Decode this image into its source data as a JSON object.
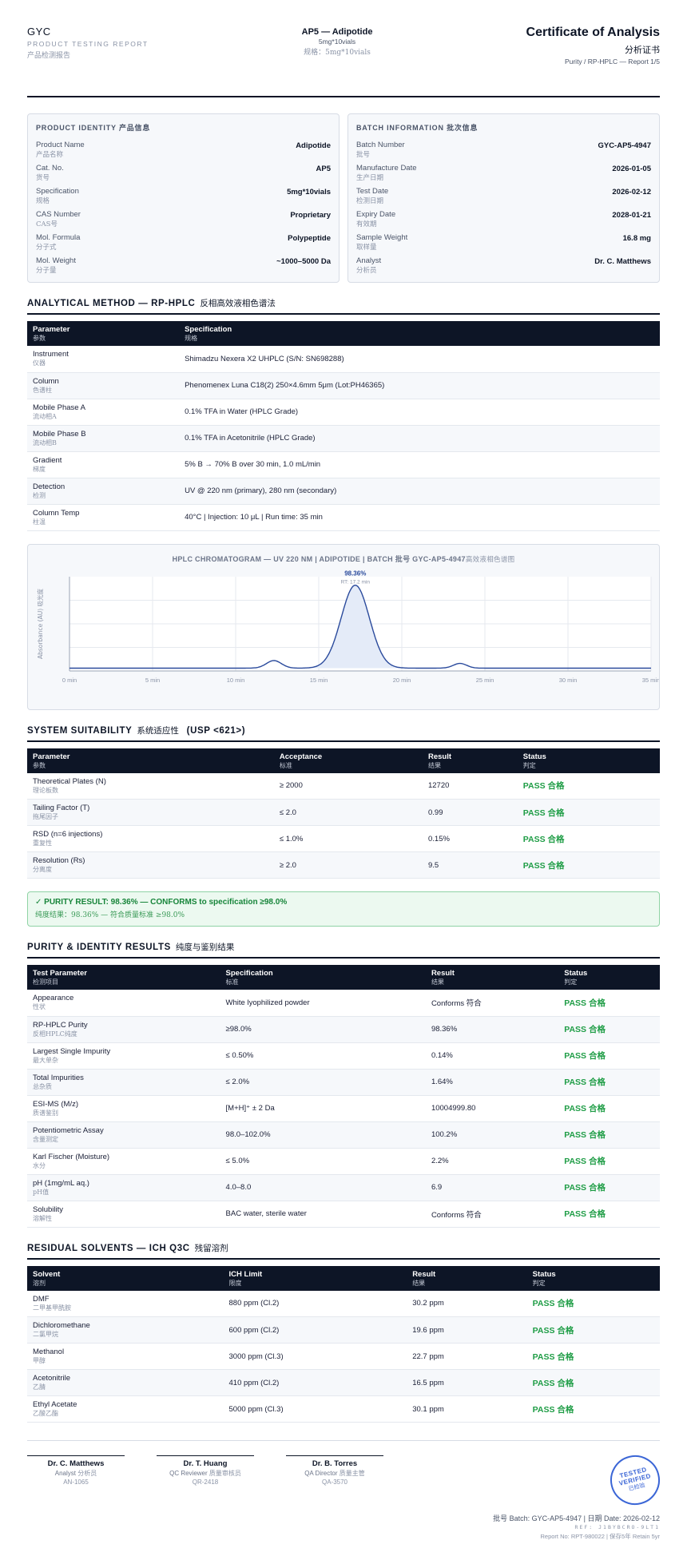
{
  "header": {
    "brand": "GYC",
    "subtitle": "PRODUCT TESTING REPORT",
    "subtitle_cn": "产品检测报告",
    "product_title": "AP5 — Adipotide",
    "product_spec": "5mg*10vials",
    "product_spec_cn": "规格：5mg*10vials",
    "doc_title": "Certificate of Analysis",
    "doc_title_cn": "分析证书",
    "doc_sub": "Purity / RP-HPLC — Report 1/5"
  },
  "product_identity": {
    "title": "PRODUCT IDENTITY",
    "title_cn": "产品信息",
    "rows": [
      {
        "k": "Product Name",
        "cn": "产品名称",
        "v": "Adipotide"
      },
      {
        "k": "Cat. No.",
        "cn": "货号",
        "v": "AP5"
      },
      {
        "k": "Specification",
        "cn": "规格",
        "v": "5mg*10vials"
      },
      {
        "k": "CAS Number",
        "cn": "CAS号",
        "v": "Proprietary"
      },
      {
        "k": "Mol. Formula",
        "cn": "分子式",
        "v": "Polypeptide"
      },
      {
        "k": "Mol. Weight",
        "cn": "分子量",
        "v": "~1000–5000 Da"
      }
    ]
  },
  "batch_info": {
    "title": "BATCH INFORMATION",
    "title_cn": "批次信息",
    "rows": [
      {
        "k": "Batch Number",
        "cn": "批号",
        "v": "GYC-AP5-4947"
      },
      {
        "k": "Manufacture Date",
        "cn": "生产日期",
        "v": "2026-01-05"
      },
      {
        "k": "Test Date",
        "cn": "检测日期",
        "v": "2026-02-12"
      },
      {
        "k": "Expiry Date",
        "cn": "有效期",
        "v": "2028-01-21"
      },
      {
        "k": "Sample Weight",
        "cn": "取样量",
        "v": "16.8 mg"
      },
      {
        "k": "Analyst",
        "cn": "分析员",
        "v": "Dr. C. Matthews"
      }
    ]
  },
  "method": {
    "title": "ANALYTICAL METHOD — RP-HPLC",
    "title_cn": "反相高效液相色谱法",
    "headers": [
      {
        "t": "Parameter",
        "cn": "参数"
      },
      {
        "t": "Specification",
        "cn": "规格"
      }
    ],
    "rows": [
      {
        "p": "Instrument",
        "cn": "仪器",
        "s": "Shimadzu Nexera X2 UHPLC (S/N: SN698288)"
      },
      {
        "p": "Column",
        "cn": "色谱柱",
        "s": "Phenomenex Luna C18(2) 250×4.6mm 5μm (Lot:PH46365)"
      },
      {
        "p": "Mobile Phase A",
        "cn": "流动相A",
        "s": "0.1% TFA in Water (HPLC Grade)"
      },
      {
        "p": "Mobile Phase B",
        "cn": "流动相B",
        "s": "0.1% TFA in Acetonitrile (HPLC Grade)"
      },
      {
        "p": "Gradient",
        "cn": "梯度",
        "s": "5% B → 70% B over 30 min, 1.0 mL/min"
      },
      {
        "p": "Detection",
        "cn": "检测",
        "s": "UV @ 220 nm (primary), 280 nm (secondary)"
      },
      {
        "p": "Column Temp",
        "cn": "柱温",
        "s": "40°C | Injection: 10 μL | Run time: 35 min"
      }
    ]
  },
  "chart_data": {
    "type": "line",
    "title": "HPLC CHROMATOGRAM — UV 220 NM | ADIPOTIDE | BATCH 批号 GYC-AP5-4947",
    "title_cn": "高效液相色谱图",
    "ylabel": "Absorbance (AU) 吸光度",
    "xlabel": "",
    "x_ticks": [
      "0 min",
      "5 min",
      "10 min",
      "15 min",
      "20 min",
      "25 min",
      "30 min",
      "35 min"
    ],
    "xlim": [
      0,
      35
    ],
    "ylim": [
      0,
      1
    ],
    "grid": true,
    "peaks": [
      {
        "rt": 12.3,
        "height": 0.08,
        "width": 0.45
      },
      {
        "rt": 17.2,
        "height": 0.88,
        "width": 0.85
      },
      {
        "rt": 23.5,
        "height": 0.05,
        "width": 0.4
      }
    ],
    "main_peak_label": "98.36%",
    "main_peak_rt_label": "RT: 17.2 min",
    "line_color": "#2a4a9c"
  },
  "system_suitability": {
    "title": "SYSTEM SUITABILITY",
    "title_cn": "系统适应性",
    "title_suffix": "(USP <621>)",
    "headers": [
      {
        "t": "Parameter",
        "cn": "参数"
      },
      {
        "t": "Acceptance",
        "cn": "标准"
      },
      {
        "t": "Result",
        "cn": "结果"
      },
      {
        "t": "Status",
        "cn": "判定"
      }
    ],
    "rows": [
      {
        "p": "Theoretical Plates (N)",
        "cn": "理论板数",
        "a": "≥ 2000",
        "r": "12720",
        "s": "PASS 合格"
      },
      {
        "p": "Tailing Factor (T)",
        "cn": "拖尾因子",
        "a": "≤ 2.0",
        "r": "0.99",
        "s": "PASS 合格"
      },
      {
        "p": "RSD (n=6 injections)",
        "cn": "重复性",
        "a": "≤ 1.0%",
        "r": "0.15%",
        "s": "PASS 合格"
      },
      {
        "p": "Resolution (Rs)",
        "cn": "分离度",
        "a": "≥ 2.0",
        "r": "9.5",
        "s": "PASS 合格"
      }
    ]
  },
  "purity_result": {
    "text": "✓ PURITY RESULT: 98.36% — CONFORMS to specification ≥98.0%",
    "text_cn": "纯度结果：98.36% — 符合质量标准 ≥98.0%"
  },
  "purity_identity": {
    "title": "PURITY & IDENTITY RESULTS",
    "title_cn": "纯度与鉴别结果",
    "headers": [
      {
        "t": "Test Parameter",
        "cn": "检测项目"
      },
      {
        "t": "Specification",
        "cn": "标准"
      },
      {
        "t": "Result",
        "cn": "结果"
      },
      {
        "t": "Status",
        "cn": "判定"
      }
    ],
    "rows": [
      {
        "p": "Appearance",
        "cn": "性状",
        "sp": "White lyophilized powder",
        "r": "Conforms 符合",
        "s": "PASS 合格"
      },
      {
        "p": "RP-HPLC Purity",
        "cn": "反相HPLC纯度",
        "sp": "≥98.0%",
        "r": "98.36%",
        "s": "PASS 合格"
      },
      {
        "p": "Largest Single Impurity",
        "cn": "最大单杂",
        "sp": "≤ 0.50%",
        "r": "0.14%",
        "s": "PASS 合格"
      },
      {
        "p": "Total Impurities",
        "cn": "总杂质",
        "sp": "≤ 2.0%",
        "r": "1.64%",
        "s": "PASS 合格"
      },
      {
        "p": "ESI-MS (M/z)",
        "cn": "质谱鉴别",
        "sp": "[M+H]⁺ ± 2 Da",
        "r": "10004999.80",
        "s": "PASS 合格"
      },
      {
        "p": "Potentiometric Assay",
        "cn": "含量测定",
        "sp": "98.0–102.0%",
        "r": "100.2%",
        "s": "PASS 合格"
      },
      {
        "p": "Karl Fischer (Moisture)",
        "cn": "水分",
        "sp": "≤ 5.0%",
        "r": "2.2%",
        "s": "PASS 合格"
      },
      {
        "p": "pH (1mg/mL aq.)",
        "cn": "pH值",
        "sp": "4.0–8.0",
        "r": "6.9",
        "s": "PASS 合格"
      },
      {
        "p": "Solubility",
        "cn": "溶解性",
        "sp": "BAC water, sterile water",
        "r": "Conforms 符合",
        "s": "PASS 合格"
      }
    ]
  },
  "residual_solvents": {
    "title": "RESIDUAL SOLVENTS — ICH Q3C",
    "title_cn": "残留溶剂",
    "headers": [
      {
        "t": "Solvent",
        "cn": "溶剂"
      },
      {
        "t": "ICH Limit",
        "cn": "限度"
      },
      {
        "t": "Result",
        "cn": "结果"
      },
      {
        "t": "Status",
        "cn": "判定"
      }
    ],
    "rows": [
      {
        "p": "DMF",
        "cn": "二甲基甲酰胺",
        "l": "880 ppm (Cl.2)",
        "r": "30.2 ppm",
        "s": "PASS 合格"
      },
      {
        "p": "Dichloromethane",
        "cn": "二氯甲烷",
        "l": "600 ppm (Cl.2)",
        "r": "19.6 ppm",
        "s": "PASS 合格"
      },
      {
        "p": "Methanol",
        "cn": "甲醇",
        "l": "3000 ppm (Cl.3)",
        "r": "22.7 ppm",
        "s": "PASS 合格"
      },
      {
        "p": "Acetonitrile",
        "cn": "乙腈",
        "l": "410 ppm (Cl.2)",
        "r": "16.5 ppm",
        "s": "PASS 合格"
      },
      {
        "p": "Ethyl Acetate",
        "cn": "乙酸乙酯",
        "l": "5000 ppm (Cl.3)",
        "r": "30.1 ppm",
        "s": "PASS 合格"
      }
    ]
  },
  "signatures": [
    {
      "name": "Dr. C. Matthews",
      "role": "Analyst",
      "role_cn": "分析员",
      "id": "AN-1065"
    },
    {
      "name": "Dr. T. Huang",
      "role": "QC Reviewer",
      "role_cn": "质量审核员",
      "id": "QR-2418"
    },
    {
      "name": "Dr. B. Torres",
      "role": "QA Director",
      "role_cn": "质量主管",
      "id": "QA-3570"
    }
  ],
  "stamp": {
    "a": "TESTED",
    "b": "VERIFIED",
    "c": "已检验"
  },
  "footer": {
    "line1": "批号 Batch: GYC-AP5-4947 | 日期 Date: 2026-02-12",
    "line2": "REF: J1BYBCRO-9LT1",
    "line3": "Report No: RPT-980022 | 保存5年 Retain 5yr"
  }
}
